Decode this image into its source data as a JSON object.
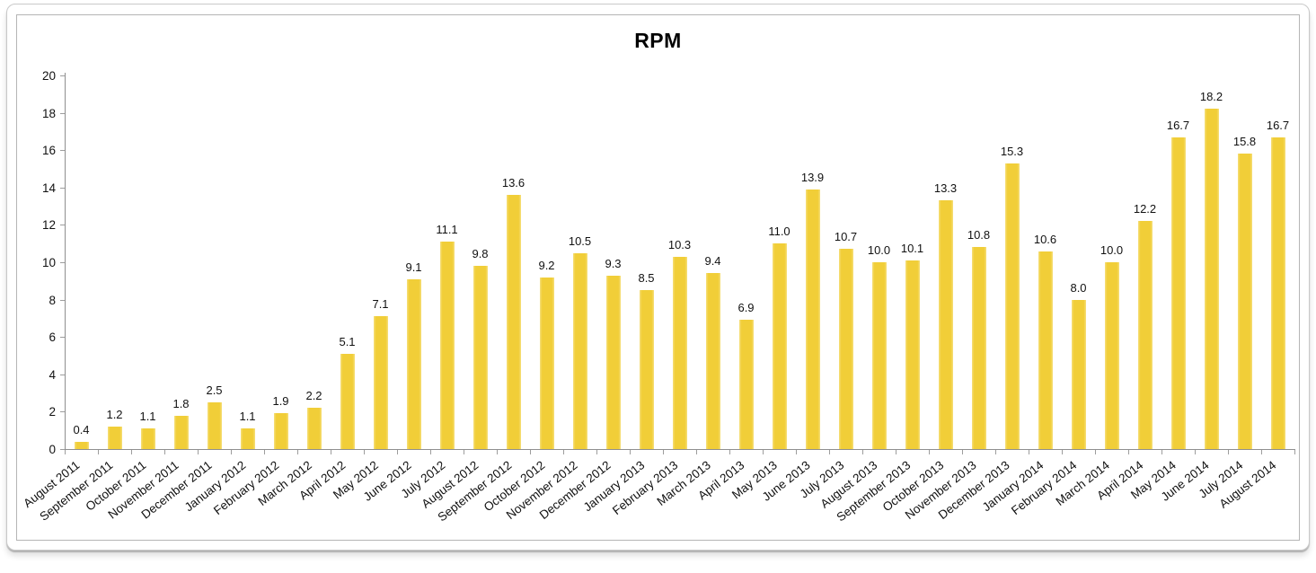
{
  "chart_data": {
    "type": "bar",
    "title": "RPM",
    "categories": [
      "August 2011",
      "September 2011",
      "October 2011",
      "November 2011",
      "December 2011",
      "January 2012",
      "February 2012",
      "March 2012",
      "April 2012",
      "May 2012",
      "June 2012",
      "July 2012",
      "August 2012",
      "September 2012",
      "October 2012",
      "November 2012",
      "December 2012",
      "January 2013",
      "February 2013",
      "March 2013",
      "April 2013",
      "May 2013",
      "June 2013",
      "July 2013",
      "August 2013",
      "September 2013",
      "October 2013",
      "November 2013",
      "December 2013",
      "January 2014",
      "February 2014",
      "March 2014",
      "April 2014",
      "May 2014",
      "June 2014",
      "July 2014",
      "August 2014"
    ],
    "values": [
      0.4,
      1.2,
      1.1,
      1.8,
      2.5,
      1.1,
      1.9,
      2.2,
      5.1,
      7.1,
      9.1,
      11.1,
      9.8,
      13.6,
      9.2,
      10.5,
      9.3,
      8.5,
      10.3,
      9.4,
      6.9,
      11.0,
      13.9,
      10.7,
      10.0,
      10.1,
      13.3,
      10.8,
      15.3,
      10.6,
      8.0,
      10.0,
      12.2,
      16.7,
      18.2,
      15.8,
      16.7
    ],
    "value_label_decimals": 1,
    "xlabel": "",
    "ylabel": "",
    "ylim": [
      0,
      20
    ],
    "ytick_step": 2,
    "grid": false,
    "legend": "none",
    "bar_color": "#F1CE38",
    "bar_edge_color": "#F6DF7C",
    "axis_color": "#8F8F8F",
    "tick_color": "#9D9D9D",
    "text_color": "#111111"
  }
}
